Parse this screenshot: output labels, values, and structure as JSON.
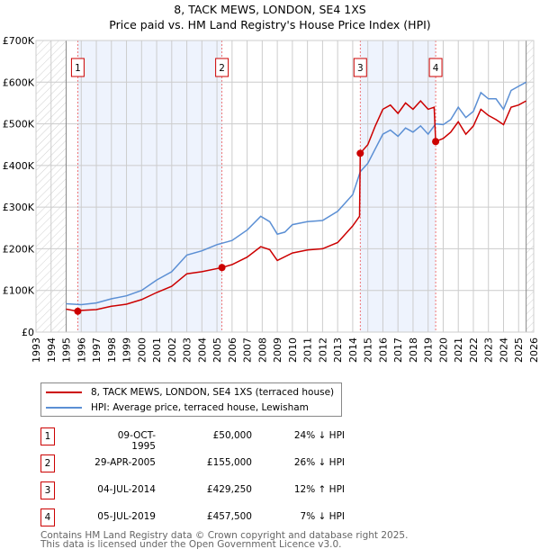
{
  "chart_data": {
    "type": "line",
    "title": "8, TACK MEWS, LONDON, SE4 1XS",
    "subtitle": "Price paid vs. HM Land Registry's House Price Index (HPI)",
    "xlim": [
      1993,
      2026
    ],
    "ylim": [
      0,
      700000
    ],
    "x_ticks": [
      "1993",
      "1994",
      "1995",
      "1996",
      "1997",
      "1998",
      "1999",
      "2000",
      "2001",
      "2002",
      "2003",
      "2004",
      "2005",
      "2006",
      "2007",
      "2008",
      "2009",
      "2010",
      "2011",
      "2012",
      "2013",
      "2014",
      "2015",
      "2016",
      "2017",
      "2018",
      "2019",
      "2020",
      "2021",
      "2022",
      "2023",
      "2024",
      "2025",
      "2026"
    ],
    "y_ticks": [
      {
        "v": 0,
        "label": "£0"
      },
      {
        "v": 100000,
        "label": "£100K"
      },
      {
        "v": 200000,
        "label": "£200K"
      },
      {
        "v": 300000,
        "label": "£300K"
      },
      {
        "v": 400000,
        "label": "£400K"
      },
      {
        "v": 500000,
        "label": "£500K"
      },
      {
        "v": 600000,
        "label": "£600K"
      },
      {
        "v": 700000,
        "label": "£700K"
      }
    ],
    "grid": true,
    "series": [
      {
        "name": "8, TACK MEWS, LONDON, SE4 1XS (terraced house)",
        "color": "#cc0000",
        "x": [
          1995,
          1995.77,
          1996,
          1997,
          1998,
          1999,
          2000,
          2001,
          2002,
          2003,
          2004,
          2005.33,
          2006,
          2007,
          2007.9,
          2008.5,
          2009,
          2010,
          2011,
          2012,
          2013,
          2014,
          2014.45,
          2014.5,
          2015,
          2015.5,
          2016,
          2016.5,
          2017,
          2017.5,
          2018,
          2018.5,
          2019,
          2019.4,
          2019.5,
          2020,
          2020.5,
          2021,
          2021.5,
          2022,
          2022.5,
          2023,
          2023.5,
          2024,
          2024.5,
          2025,
          2025.5
        ],
        "y": [
          55000,
          50000,
          52000,
          54000,
          62000,
          67000,
          78000,
          95000,
          110000,
          140000,
          145000,
          155000,
          162000,
          180000,
          205000,
          198000,
          172000,
          190000,
          197000,
          200000,
          215000,
          255000,
          278000,
          429250,
          450000,
          495000,
          535000,
          545000,
          525000,
          550000,
          535000,
          555000,
          535000,
          540000,
          457500,
          465000,
          480000,
          505000,
          475000,
          495000,
          535000,
          520000,
          510000,
          498000,
          540000,
          545000,
          555000
        ]
      },
      {
        "name": "HPI: Average price, terraced house, Lewisham",
        "color": "#5b8fd4",
        "x": [
          1995,
          1996,
          1997,
          1998,
          1999,
          2000,
          2001,
          2002,
          2003,
          2004,
          2005,
          2006,
          2007,
          2007.9,
          2008.5,
          2009,
          2009.5,
          2010,
          2011,
          2012,
          2013,
          2014,
          2014.5,
          2015,
          2015.5,
          2016,
          2016.5,
          2017,
          2017.5,
          2018,
          2018.5,
          2019,
          2019.5,
          2020,
          2020.5,
          2021,
          2021.5,
          2022,
          2022.5,
          2023,
          2023.5,
          2024,
          2024.5,
          2025,
          2025.5
        ],
        "y": [
          68000,
          66000,
          70000,
          80000,
          87000,
          100000,
          125000,
          145000,
          185000,
          195000,
          210000,
          220000,
          245000,
          278000,
          265000,
          235000,
          240000,
          258000,
          265000,
          268000,
          290000,
          330000,
          385000,
          405000,
          440000,
          475000,
          485000,
          470000,
          490000,
          480000,
          495000,
          475000,
          500000,
          498000,
          510000,
          540000,
          515000,
          530000,
          575000,
          560000,
          560000,
          535000,
          580000,
          590000,
          600000
        ]
      }
    ],
    "sales": [
      {
        "n": "1",
        "x": 1995.77,
        "date": "09-OCT-1995",
        "price": "£50,000",
        "value": 50000,
        "hpi": "24% ↓ HPI"
      },
      {
        "n": "2",
        "x": 2005.33,
        "date": "29-APR-2005",
        "price": "£155,000",
        "value": 155000,
        "hpi": "26% ↓ HPI"
      },
      {
        "n": "3",
        "x": 2014.5,
        "date": "04-JUL-2014",
        "price": "£429,250",
        "value": 429250,
        "hpi": "12% ↑ HPI"
      },
      {
        "n": "4",
        "x": 2019.5,
        "date": "05-JUL-2019",
        "price": "£457,500",
        "value": 457500,
        "hpi": "7% ↓ HPI"
      }
    ],
    "data_range": [
      1995,
      2025.5
    ]
  },
  "footer": {
    "line1": "Contains HM Land Registry data © Crown copyright and database right 2025.",
    "line2": "This data is licensed under the Open Government Licence v3.0."
  }
}
